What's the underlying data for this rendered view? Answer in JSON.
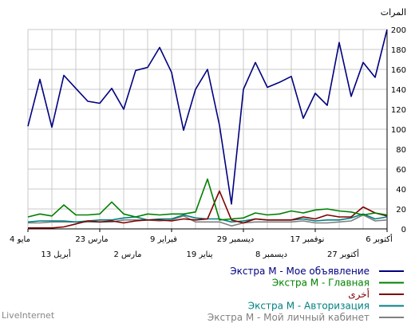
{
  "chart_data": {
    "type": "line",
    "y_unit_label": "المرات",
    "ylim": [
      0,
      200
    ],
    "y_ticks": [
      0,
      20,
      40,
      60,
      80,
      100,
      120,
      140,
      160,
      180,
      200
    ],
    "x_tick_labels_top": [
      "4 مايو",
      "23 مارس",
      "9 فبراير",
      "29 ديسمبر",
      "17 نوفمبر",
      "6 أكتوبر"
    ],
    "x_tick_labels_bottom": [
      "13 أبريل",
      "2 مارس",
      "19 يناير",
      "8 ديسمبر",
      "27 أكتوبر"
    ],
    "x_count": 31,
    "grid": true,
    "legend_position": "bottom-right",
    "series": [
      {
        "name": "Экстра М - Мое объявление",
        "color": "#000080",
        "values": [
          103,
          150,
          102,
          154,
          141,
          128,
          126,
          141,
          120,
          159,
          162,
          182,
          157,
          99,
          140,
          160,
          104,
          25,
          140,
          167,
          142,
          147,
          153,
          111,
          136,
          124,
          187,
          133,
          167,
          152,
          200
        ]
      },
      {
        "name": "Экстра М - Главная",
        "color": "#008000",
        "values": [
          12,
          15,
          13,
          24,
          14,
          14,
          15,
          27,
          15,
          12,
          15,
          14,
          15,
          15,
          17,
          50,
          9,
          10,
          11,
          16,
          14,
          15,
          18,
          16,
          19,
          20,
          18,
          17,
          14,
          16,
          14
        ]
      },
      {
        "name": "أخرى",
        "color": "#800000",
        "values": [
          1,
          1,
          1,
          2,
          5,
          8,
          7,
          8,
          6,
          8,
          9,
          9,
          8,
          10,
          9,
          10,
          38,
          9,
          6,
          10,
          9,
          9,
          9,
          12,
          10,
          14,
          12,
          12,
          22,
          16,
          13
        ]
      },
      {
        "name": "Экстра М - Авторизация",
        "color": "#008080",
        "values": [
          7,
          8,
          8,
          8,
          7,
          8,
          9,
          9,
          11,
          12,
          9,
          10,
          10,
          14,
          11,
          10,
          10,
          7,
          8,
          10,
          9,
          9,
          9,
          10,
          8,
          9,
          9,
          11,
          15,
          10,
          12
        ]
      },
      {
        "name": "Экстра М - Мой личный кабинет",
        "color": "#808080",
        "values": [
          6,
          6,
          7,
          7,
          7,
          7,
          7,
          7,
          9,
          9,
          9,
          8,
          9,
          13,
          7,
          7,
          7,
          3,
          6,
          7,
          7,
          7,
          7,
          8,
          6,
          6,
          7,
          8,
          14,
          8,
          9
        ]
      }
    ]
  },
  "brand": "LiveInternet"
}
